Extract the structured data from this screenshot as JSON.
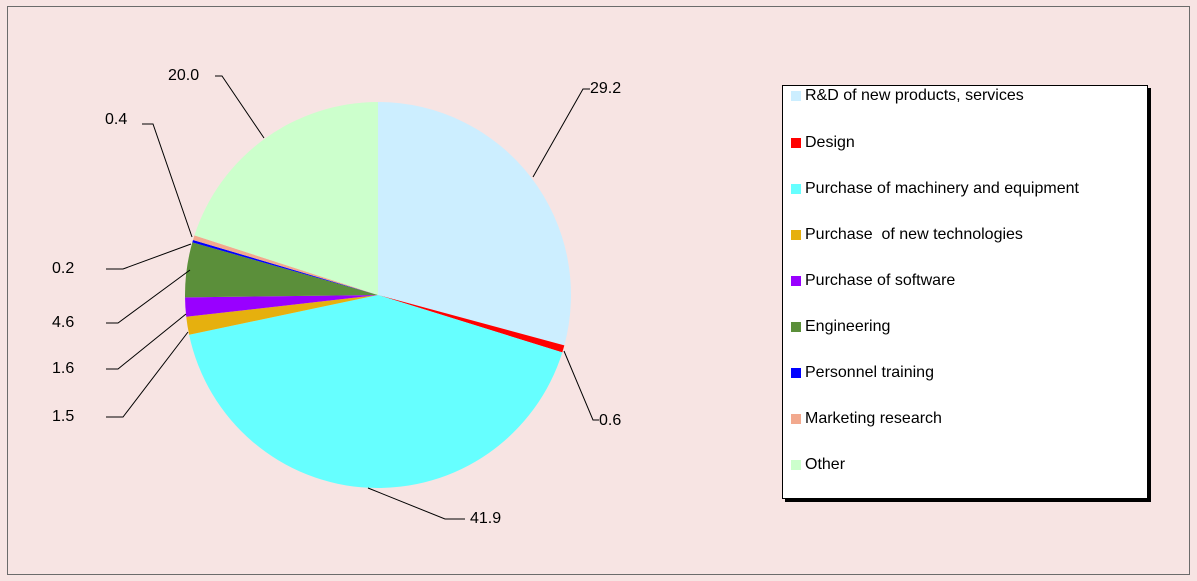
{
  "chart_data": {
    "type": "pie",
    "title": "",
    "categories": [
      "R&D of new products, services",
      "Design",
      "Purchase of machinery and equipment",
      "Purchase  of new technologies",
      "Purchase of software",
      "Engineering",
      "Personnel training",
      "Marketing research",
      "Other"
    ],
    "values": [
      29.2,
      0.6,
      41.9,
      1.5,
      1.6,
      4.6,
      0.2,
      0.4,
      20.0
    ],
    "value_labels": [
      "29.2",
      "0.6",
      "41.9",
      "1.5",
      "1.6",
      "4.6",
      "0.2",
      "0.4",
      "20.0"
    ],
    "colors": [
      "#cceeff",
      "#ff0000",
      "#66ffff",
      "#e6b00e",
      "#9900ff",
      "#5b8f3a",
      "#0000ff",
      "#f2a98e",
      "#ccffcc"
    ],
    "start_angle_deg": 0,
    "direction": "clockwise",
    "legend_position": "right",
    "data_labels": true
  }
}
